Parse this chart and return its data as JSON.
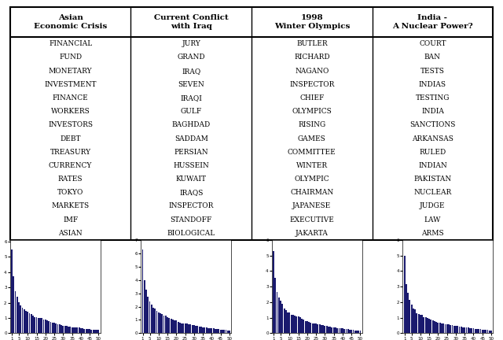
{
  "col_headers": [
    "Asian\nEconomic Crisis",
    "Current Conflict\nwith Iraq",
    "1998\nWinter Olympics",
    "India -\nA Nuclear Power?"
  ],
  "words": [
    [
      "FINANCIAL",
      "FUND",
      "MONETARY",
      "INVESTMENT",
      "FINANCE",
      "WORKERS",
      "INVESTORS",
      "DEBT",
      "TREASURY",
      "CURRENCY",
      "RATES",
      "TOKYO",
      "MARKETS",
      "IMF",
      "ASIAN"
    ],
    [
      "JURY",
      "GRAND",
      "IRAQ",
      "SEVEN",
      "IRAQI",
      "GULF",
      "BAGHDAD",
      "SADDAM",
      "PERSIAN",
      "HUSSEIN",
      "KUWAIT",
      "IRAQS",
      "INSPECTOR",
      "STANDOFF",
      "BIOLOGICAL"
    ],
    [
      "BUTLER",
      "RICHARD",
      "NAGANO",
      "INSPECTOR",
      "CHIEF",
      "OLYMPICS",
      "RISING",
      "GAMES",
      "COMMITTEE",
      "WINTER",
      "OLYMPIC",
      "CHAIRMAN",
      "JAPANESE",
      "EXECUTIVE",
      "JAKARTA"
    ],
    [
      "COURT",
      "BAN",
      "TESTS",
      "INDIAS",
      "TESTING",
      "INDIA",
      "SANCTIONS",
      "ARKANSAS",
      "RULED",
      "INDIAN",
      "PAKISTAN",
      "NUCLEAR",
      "JUDGE",
      "LAW",
      "ARMS"
    ]
  ],
  "bar_color": "#1a1a6e",
  "chart_ylims": [
    6.1,
    7.0,
    6.0,
    6.0
  ],
  "chart_xticks": [
    1,
    5,
    10,
    15,
    20,
    25,
    30,
    35,
    40,
    45,
    50
  ],
  "num_bars": 50
}
